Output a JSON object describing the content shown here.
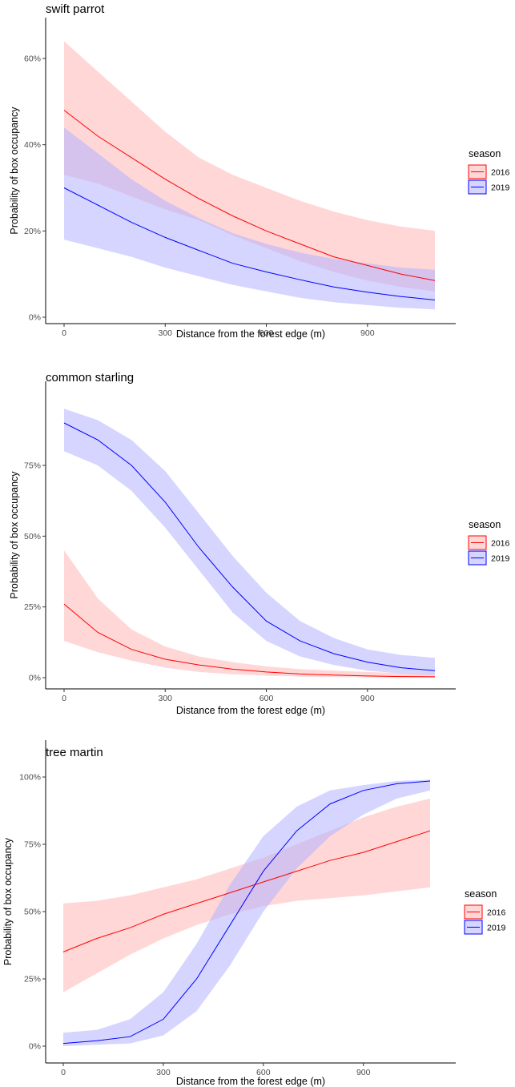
{
  "chart_data": [
    {
      "type": "line",
      "title": "swift parrot",
      "xlabel": "Distance from the forest edge (m)",
      "ylabel": "Probability of box occupancy",
      "xlim": [
        0,
        1100
      ],
      "ylim": [
        0,
        0.6
      ],
      "xticks": [
        0,
        300,
        600,
        900
      ],
      "xtick_labels": [
        "0",
        "300",
        "600",
        "900"
      ],
      "yticks": [
        0,
        0.2,
        0.4,
        0.6
      ],
      "ytick_labels": [
        "0%",
        "20%",
        "40%",
        "60%"
      ],
      "legend": {
        "title": "season",
        "position": "right"
      },
      "x": [
        0,
        100,
        200,
        300,
        400,
        500,
        600,
        700,
        800,
        900,
        1000,
        1100
      ],
      "series": [
        {
          "name": "2016",
          "color": "#ff0000",
          "fill": "#ffb6b6",
          "values": [
            0.48,
            0.42,
            0.37,
            0.32,
            0.275,
            0.235,
            0.2,
            0.17,
            0.14,
            0.12,
            0.1,
            0.085
          ],
          "lower": [
            0.33,
            0.31,
            0.28,
            0.25,
            0.225,
            0.19,
            0.16,
            0.13,
            0.105,
            0.085,
            0.07,
            0.06
          ],
          "upper": [
            0.64,
            0.57,
            0.5,
            0.43,
            0.37,
            0.33,
            0.3,
            0.27,
            0.245,
            0.225,
            0.21,
            0.2
          ]
        },
        {
          "name": "2019",
          "color": "#0000ff",
          "fill": "#b3b3ff",
          "values": [
            0.3,
            0.26,
            0.22,
            0.185,
            0.155,
            0.125,
            0.105,
            0.087,
            0.07,
            0.058,
            0.048,
            0.04
          ],
          "lower": [
            0.18,
            0.16,
            0.14,
            0.115,
            0.095,
            0.075,
            0.06,
            0.045,
            0.035,
            0.028,
            0.022,
            0.018
          ],
          "upper": [
            0.44,
            0.38,
            0.32,
            0.27,
            0.23,
            0.195,
            0.17,
            0.15,
            0.135,
            0.125,
            0.115,
            0.11
          ]
        }
      ]
    },
    {
      "type": "line",
      "title": "common starling",
      "xlabel": "Distance from the forest edge (m)",
      "ylabel": "Probability of box occupancy",
      "xlim": [
        0,
        1100
      ],
      "ylim": [
        0,
        0.75
      ],
      "xticks": [
        0,
        300,
        600,
        900
      ],
      "xtick_labels": [
        "0",
        "300",
        "600",
        "900"
      ],
      "yticks": [
        0,
        0.25,
        0.5,
        0.75
      ],
      "ytick_labels": [
        "0%",
        "25%",
        "50%",
        "75%"
      ],
      "legend": {
        "title": "season",
        "position": "right"
      },
      "x": [
        0,
        100,
        200,
        300,
        400,
        500,
        600,
        700,
        800,
        900,
        1000,
        1100
      ],
      "series": [
        {
          "name": "2016",
          "color": "#ff0000",
          "fill": "#ffb6b6",
          "values": [
            0.26,
            0.16,
            0.1,
            0.065,
            0.045,
            0.03,
            0.02,
            0.013,
            0.009,
            0.006,
            0.004,
            0.003
          ],
          "lower": [
            0.13,
            0.09,
            0.06,
            0.035,
            0.02,
            0.012,
            0.007,
            0.004,
            0.002,
            0.001,
            0.0005,
            0.0
          ],
          "upper": [
            0.45,
            0.28,
            0.17,
            0.11,
            0.075,
            0.055,
            0.04,
            0.03,
            0.025,
            0.02,
            0.016,
            0.013
          ]
        },
        {
          "name": "2019",
          "color": "#0000ff",
          "fill": "#b3b3ff",
          "values": [
            0.9,
            0.84,
            0.75,
            0.62,
            0.46,
            0.32,
            0.2,
            0.13,
            0.085,
            0.055,
            0.035,
            0.025
          ],
          "lower": [
            0.8,
            0.75,
            0.66,
            0.53,
            0.38,
            0.23,
            0.13,
            0.075,
            0.045,
            0.025,
            0.015,
            0.01
          ],
          "upper": [
            0.95,
            0.91,
            0.84,
            0.73,
            0.58,
            0.43,
            0.3,
            0.2,
            0.14,
            0.1,
            0.08,
            0.07
          ]
        }
      ]
    },
    {
      "type": "line",
      "title": "tree martin",
      "xlabel": "Distance from the forest edge (m)",
      "ylabel": "Probability of box occupancy",
      "xlim": [
        0,
        1100
      ],
      "ylim": [
        0,
        1.0
      ],
      "xticks": [
        0,
        300,
        600,
        900
      ],
      "xtick_labels": [
        "0",
        "300",
        "600",
        "900"
      ],
      "yticks": [
        0,
        0.25,
        0.5,
        0.75,
        1.0
      ],
      "ytick_labels": [
        "0%",
        "25%",
        "50%",
        "75%",
        "100%"
      ],
      "legend": {
        "title": "season",
        "position": "right"
      },
      "x": [
        0,
        100,
        200,
        300,
        400,
        500,
        600,
        700,
        800,
        900,
        1000,
        1100
      ],
      "series": [
        {
          "name": "2016",
          "color": "#ff0000",
          "fill": "#ffb6b6",
          "values": [
            0.35,
            0.4,
            0.44,
            0.49,
            0.53,
            0.57,
            0.61,
            0.65,
            0.69,
            0.72,
            0.76,
            0.8
          ],
          "lower": [
            0.2,
            0.27,
            0.34,
            0.4,
            0.45,
            0.49,
            0.52,
            0.54,
            0.55,
            0.56,
            0.575,
            0.59
          ],
          "upper": [
            0.53,
            0.54,
            0.56,
            0.59,
            0.62,
            0.66,
            0.7,
            0.75,
            0.8,
            0.85,
            0.89,
            0.92
          ]
        },
        {
          "name": "2019",
          "color": "#0000ff",
          "fill": "#b3b3ff",
          "values": [
            0.01,
            0.02,
            0.035,
            0.1,
            0.25,
            0.45,
            0.65,
            0.8,
            0.9,
            0.95,
            0.975,
            0.985
          ],
          "lower": [
            0.0,
            0.005,
            0.01,
            0.04,
            0.13,
            0.3,
            0.5,
            0.66,
            0.78,
            0.86,
            0.92,
            0.95
          ],
          "upper": [
            0.05,
            0.06,
            0.1,
            0.2,
            0.38,
            0.6,
            0.78,
            0.89,
            0.95,
            0.97,
            0.985,
            0.99
          ]
        }
      ]
    }
  ]
}
